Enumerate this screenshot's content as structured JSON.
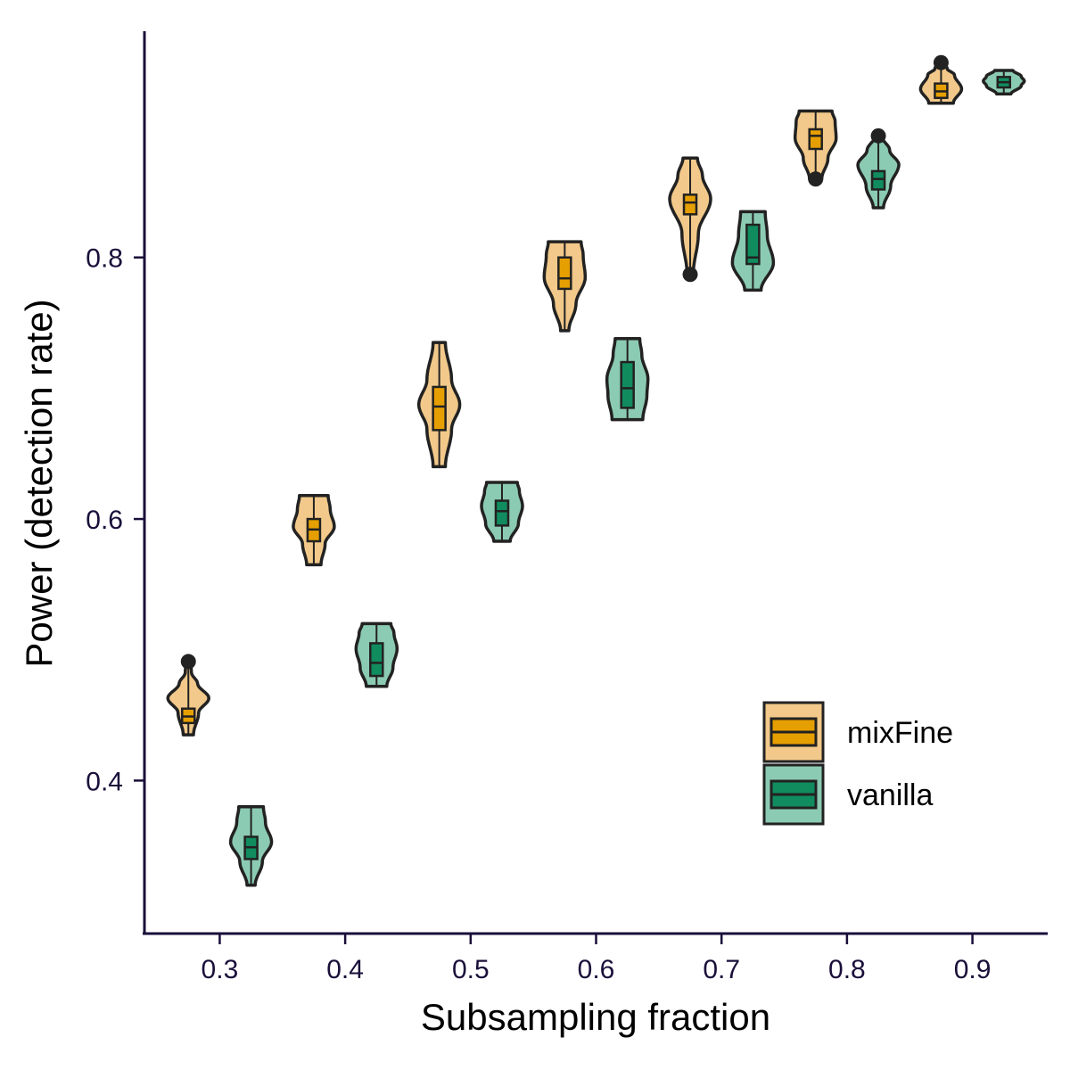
{
  "chart_data": {
    "type": "violin",
    "title": "",
    "xlabel": "Subsampling fraction",
    "ylabel": "Power (detection rate)",
    "xlim": [
      0.24,
      0.96
    ],
    "ylim": [
      0.283,
      0.973
    ],
    "x_ticks": [
      0.3,
      0.4,
      0.5,
      0.6,
      0.7,
      0.8,
      0.9
    ],
    "x_tick_labels": [
      "0.3",
      "0.4",
      "0.5",
      "0.6",
      "0.7",
      "0.8",
      "0.9"
    ],
    "y_ticks": [
      0.4,
      0.6,
      0.8
    ],
    "y_tick_labels": [
      "0.4",
      "0.6",
      "0.8"
    ],
    "legend_position": "bottom-right",
    "series": [
      {
        "name": "mixFine",
        "fill": "#E69F00",
        "violin_fill": "#F2C98A",
        "groups": [
          {
            "x": 0.275,
            "min": 0.435,
            "q1": 0.444,
            "median": 0.449,
            "q3": 0.455,
            "max": 0.491,
            "outliers": [
              0.491
            ],
            "shape": [
              [
                0,
                0.25
              ],
              [
                0.3,
                0.5
              ],
              [
                0.5,
                1.0
              ],
              [
                0.7,
                0.45
              ],
              [
                0.85,
                0.15
              ],
              [
                1,
                0.12
              ]
            ]
          },
          {
            "x": 0.375,
            "min": 0.565,
            "q1": 0.583,
            "median": 0.592,
            "q3": 0.6,
            "max": 0.618,
            "outliers": [],
            "shape": [
              [
                0,
                0.35
              ],
              [
                0.3,
                0.55
              ],
              [
                0.55,
                1.0
              ],
              [
                0.8,
                0.8
              ],
              [
                1,
                0.7
              ]
            ]
          },
          {
            "x": 0.475,
            "min": 0.64,
            "q1": 0.668,
            "median": 0.686,
            "q3": 0.701,
            "max": 0.735,
            "outliers": [],
            "shape": [
              [
                0,
                0.3
              ],
              [
                0.3,
                0.6
              ],
              [
                0.5,
                1.0
              ],
              [
                0.7,
                0.6
              ],
              [
                1,
                0.3
              ]
            ]
          },
          {
            "x": 0.575,
            "min": 0.744,
            "q1": 0.776,
            "median": 0.784,
            "q3": 0.8,
            "max": 0.812,
            "outliers": [],
            "shape": [
              [
                0,
                0.2
              ],
              [
                0.3,
                0.55
              ],
              [
                0.6,
                1.0
              ],
              [
                0.85,
                0.9
              ],
              [
                1,
                0.8
              ]
            ]
          },
          {
            "x": 0.675,
            "min": 0.787,
            "q1": 0.833,
            "median": 0.842,
            "q3": 0.848,
            "max": 0.876,
            "outliers": [
              0.787
            ],
            "shape": [
              [
                0,
                0.15
              ],
              [
                0.35,
                0.4
              ],
              [
                0.65,
                1.0
              ],
              [
                0.85,
                0.6
              ],
              [
                1,
                0.35
              ]
            ]
          },
          {
            "x": 0.775,
            "min": 0.86,
            "q1": 0.883,
            "median": 0.893,
            "q3": 0.898,
            "max": 0.912,
            "outliers": [
              0.86
            ],
            "shape": [
              [
                0,
                0.3
              ],
              [
                0.3,
                0.6
              ],
              [
                0.6,
                1.0
              ],
              [
                0.85,
                0.95
              ],
              [
                1,
                0.8
              ]
            ]
          },
          {
            "x": 0.875,
            "min": 0.918,
            "q1": 0.922,
            "median": 0.927,
            "q3": 0.933,
            "max": 0.949,
            "outliers": [
              0.949
            ],
            "shape": [
              [
                0,
                0.6
              ],
              [
                0.35,
                1.0
              ],
              [
                0.7,
                0.65
              ],
              [
                0.85,
                0.3
              ],
              [
                1,
                0.15
              ]
            ]
          }
        ]
      },
      {
        "name": "vanilla",
        "fill": "#118C5F",
        "violin_fill": "#8CCBB3",
        "groups": [
          {
            "x": 0.325,
            "min": 0.32,
            "q1": 0.34,
            "median": 0.349,
            "q3": 0.357,
            "max": 0.38,
            "outliers": [],
            "shape": [
              [
                0,
                0.2
              ],
              [
                0.3,
                0.55
              ],
              [
                0.55,
                1.0
              ],
              [
                0.8,
                0.7
              ],
              [
                1,
                0.6
              ]
            ]
          },
          {
            "x": 0.425,
            "min": 0.472,
            "q1": 0.48,
            "median": 0.49,
            "q3": 0.505,
            "max": 0.52,
            "outliers": [],
            "shape": [
              [
                0,
                0.5
              ],
              [
                0.3,
                0.8
              ],
              [
                0.6,
                1.0
              ],
              [
                0.85,
                0.85
              ],
              [
                1,
                0.7
              ]
            ]
          },
          {
            "x": 0.525,
            "min": 0.583,
            "q1": 0.595,
            "median": 0.606,
            "q3": 0.614,
            "max": 0.628,
            "outliers": [],
            "shape": [
              [
                0,
                0.4
              ],
              [
                0.3,
                0.8
              ],
              [
                0.6,
                1.0
              ],
              [
                0.85,
                0.85
              ],
              [
                1,
                0.75
              ]
            ]
          },
          {
            "x": 0.625,
            "min": 0.676,
            "q1": 0.685,
            "median": 0.7,
            "q3": 0.72,
            "max": 0.738,
            "outliers": [],
            "shape": [
              [
                0,
                0.75
              ],
              [
                0.3,
                0.95
              ],
              [
                0.5,
                1.0
              ],
              [
                0.8,
                0.7
              ],
              [
                1,
                0.6
              ]
            ]
          },
          {
            "x": 0.725,
            "min": 0.775,
            "q1": 0.795,
            "median": 0.8,
            "q3": 0.825,
            "max": 0.835,
            "outliers": [],
            "shape": [
              [
                0,
                0.4
              ],
              [
                0.35,
                1.0
              ],
              [
                0.7,
                0.7
              ],
              [
                1,
                0.6
              ]
            ]
          },
          {
            "x": 0.825,
            "min": 0.838,
            "q1": 0.852,
            "median": 0.86,
            "q3": 0.866,
            "max": 0.893,
            "outliers": [
              0.893
            ],
            "shape": [
              [
                0,
                0.25
              ],
              [
                0.3,
                0.6
              ],
              [
                0.6,
                1.0
              ],
              [
                0.8,
                0.55
              ],
              [
                1,
                0.15
              ]
            ]
          },
          {
            "x": 0.925,
            "min": 0.925,
            "q1": 0.93,
            "median": 0.934,
            "q3": 0.938,
            "max": 0.943,
            "outliers": [],
            "shape": [
              [
                0,
                0.35
              ],
              [
                0.35,
                0.85
              ],
              [
                0.55,
                1.0
              ],
              [
                0.75,
                0.85
              ],
              [
                1,
                0.45
              ]
            ]
          }
        ]
      }
    ]
  }
}
